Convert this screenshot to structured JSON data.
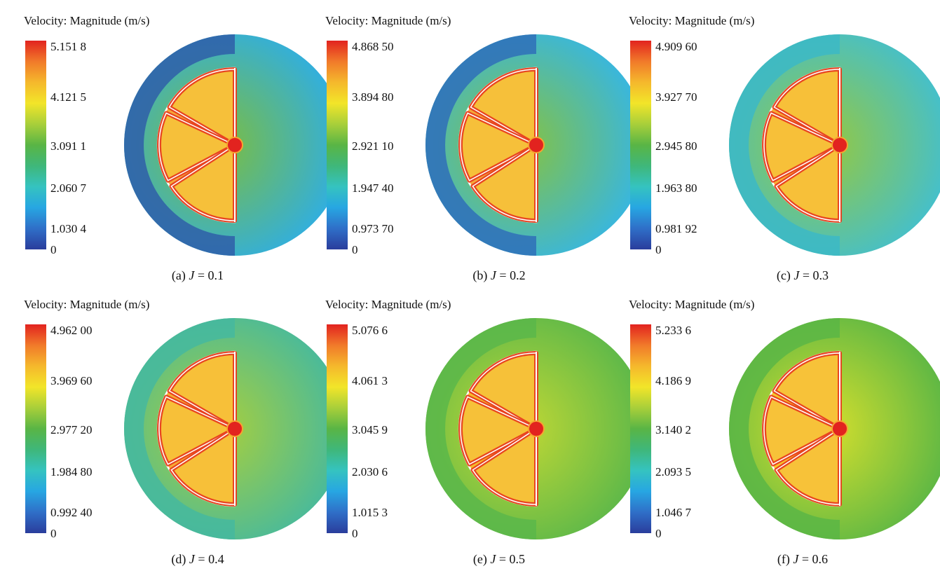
{
  "figure": {
    "legend_title": "Velocity: Magnitude (m/s)",
    "colorbar_colors": [
      "#2a3d9c",
      "#2f6fc8",
      "#27a6e2",
      "#35c3c0",
      "#3fb77a",
      "#59b545",
      "#a8cf3a",
      "#f2e529",
      "#f5b82c",
      "#f17a2a",
      "#e2231f"
    ],
    "colors": {
      "deep_blue": "#2f5ea8",
      "light_blue": "#2eaee6",
      "teal": "#43b8a8",
      "green": "#5bb347",
      "yellow_green": "#b7d43a",
      "orange": "#f6a431",
      "red": "#e2231f"
    },
    "panels": [
      {
        "id": "a",
        "caption_prefix": "(a)",
        "j_symbol": "J",
        "caption_value": "= 0.1",
        "ticks": [
          "5.151 8",
          "4.121 5",
          "3.091 1",
          "2.060 7",
          "1.030 4",
          "0"
        ],
        "outer_color": "#2eaee6",
        "left_color": "#2f5ea8",
        "right_color": "#7cbd3e",
        "blade_color": "#f5a83a"
      },
      {
        "id": "b",
        "caption_prefix": "(b)",
        "j_symbol": "J",
        "caption_value": "= 0.2",
        "ticks": [
          "4.868 50",
          "3.894 80",
          "2.921 10",
          "1.947 40",
          "0.973 70",
          "0"
        ],
        "outer_color": "#35b6e6",
        "left_color": "#2f6fb8",
        "right_color": "#86c23f",
        "blade_color": "#f5a83a"
      },
      {
        "id": "c",
        "caption_prefix": "(c)",
        "j_symbol": "J",
        "caption_value": "= 0.3",
        "ticks": [
          "4.909 60",
          "3.927 70",
          "2.945 80",
          "1.963 80",
          "0.981 92",
          "0"
        ],
        "outer_color": "#42bfd0",
        "left_color": "#3cb8c6",
        "right_color": "#96c83e",
        "blade_color": "#f7ad33"
      },
      {
        "id": "d",
        "caption_prefix": "(d)",
        "j_symbol": "J",
        "caption_value": "= 0.4",
        "ticks": [
          "4.962 00",
          "3.969 60",
          "2.977 20",
          "1.984 80",
          "0.992 40",
          "0"
        ],
        "outer_color": "#45b99f",
        "left_color": "#45b99f",
        "right_color": "#a9cf3b",
        "blade_color": "#f7ad33"
      },
      {
        "id": "e",
        "caption_prefix": "(e)",
        "j_symbol": "J",
        "caption_value": "= 0.5",
        "ticks": [
          "5.076 6",
          "4.061 3",
          "3.045 9",
          "2.030 6",
          "1.015 3",
          "0"
        ],
        "outer_color": "#5ab74a",
        "left_color": "#5ab74a",
        "right_color": "#c2d834",
        "blade_color": "#f6bd2a"
      },
      {
        "id": "f",
        "caption_prefix": "(f)",
        "j_symbol": "J",
        "caption_value": "= 0.6",
        "ticks": [
          "5.233 6",
          "4.186 9",
          "3.140 2",
          "2.093 5",
          "1.046 7",
          "0"
        ],
        "outer_color": "#5ab645",
        "left_color": "#5ab645",
        "right_color": "#d9e02c",
        "blade_color": "#f8c72a"
      }
    ]
  }
}
